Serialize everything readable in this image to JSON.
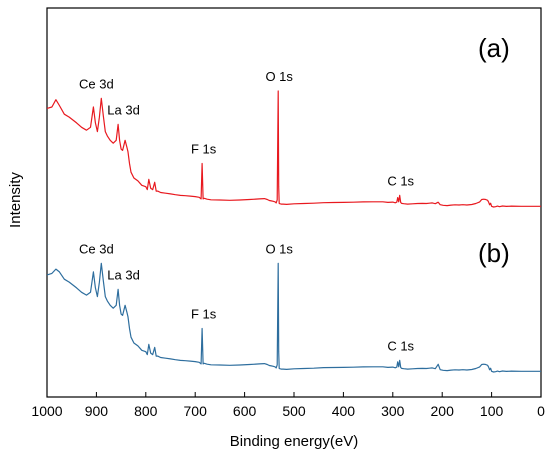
{
  "chart_data": {
    "type": "line",
    "xlabel": "Binding energy(eV)",
    "ylabel": "Intensity",
    "xlim": [
      1000,
      0
    ],
    "x_reversed": true,
    "x_ticks": [
      1000,
      900,
      800,
      700,
      600,
      500,
      400,
      300,
      200,
      100,
      0
    ],
    "grid": false,
    "legend": "none",
    "series": [
      {
        "color": "#e8191f",
        "panel_label": "(a)",
        "x": [
          1000,
          990,
          982,
          975,
          965,
          955,
          940,
          930,
          920,
          912,
          906,
          902,
          898,
          894,
          890,
          886,
          882,
          878,
          872,
          866,
          860,
          856,
          853,
          850,
          847,
          842,
          838,
          836,
          833,
          830,
          824,
          816,
          808,
          800,
          797,
          794,
          790,
          786,
          782,
          779,
          776,
          770,
          760,
          750,
          740,
          730,
          720,
          710,
          700,
          692,
          688,
          686,
          684,
          682,
          680,
          676,
          668,
          650,
          630,
          610,
          590,
          570,
          560,
          554,
          550,
          546,
          542,
          538,
          536,
          534,
          532,
          531,
          530,
          528,
          526,
          522,
          515,
          500,
          480,
          460,
          440,
          420,
          400,
          380,
          360,
          340,
          320,
          310,
          300,
          295,
          292,
          290,
          288,
          286,
          284,
          282,
          278,
          270,
          260,
          250,
          240,
          232,
          226,
          220,
          214,
          208,
          204,
          198,
          190,
          182,
          174,
          166,
          158,
          150,
          140,
          132,
          124,
          120,
          116,
          112,
          108,
          106,
          104,
          102,
          100,
          96,
          92,
          88,
          84,
          78,
          70,
          60,
          40,
          20,
          0
        ],
        "y": [
          68,
          69,
          74,
          70,
          64,
          62,
          58,
          55,
          53,
          55,
          69,
          58,
          52,
          62,
          75,
          63,
          52,
          49,
          46,
          44,
          46,
          57,
          46,
          40,
          39,
          46,
          41,
          38,
          30,
          24,
          20,
          18,
          15,
          14,
          12,
          19,
          13,
          12,
          17,
          11,
          11,
          10,
          9.5,
          9,
          8.5,
          8,
          7.8,
          7.5,
          7.2,
          6.7,
          5.6,
          30,
          5.6,
          6,
          5.8,
          5.4,
          5,
          4.8,
          4.6,
          4.8,
          5.2,
          5.6,
          5.8,
          5.2,
          4.5,
          4.2,
          3.9,
          3.5,
          2.8,
          5,
          80,
          14,
          2.5,
          2.2,
          2,
          2,
          1.8,
          2.2,
          2.4,
          2.6,
          3,
          3.1,
          3.2,
          3.3,
          3.5,
          3.6,
          3.6,
          3.2,
          3.4,
          2.9,
          3.4,
          6.5,
          3.6,
          8,
          3.2,
          2.5,
          2.3,
          2,
          2.2,
          2.4,
          2.5,
          2.4,
          2.6,
          2.8,
          2.3,
          3.3,
          1.6,
          1.2,
          1,
          1.3,
          1.5,
          1.4,
          1.6,
          1.4,
          1.7,
          2.4,
          3.5,
          5.2,
          5.4,
          5.2,
          4.6,
          3.4,
          1.5,
          2.6,
          0.5,
          0,
          0.2,
          0.6,
          0.2,
          0.7,
          0.4,
          0.6,
          0.5,
          0.5,
          0.5
        ]
      },
      {
        "color": "#2e6e9e",
        "panel_label": "(b)",
        "x": [
          1000,
          990,
          982,
          975,
          965,
          955,
          940,
          930,
          920,
          912,
          906,
          902,
          898,
          894,
          890,
          886,
          882,
          878,
          872,
          866,
          860,
          856,
          853,
          850,
          847,
          842,
          838,
          836,
          833,
          830,
          824,
          816,
          808,
          800,
          797,
          794,
          790,
          786,
          782,
          779,
          776,
          770,
          760,
          750,
          740,
          730,
          720,
          710,
          700,
          692,
          688,
          686,
          684,
          682,
          680,
          676,
          668,
          650,
          630,
          610,
          590,
          570,
          560,
          554,
          550,
          546,
          542,
          538,
          536,
          534,
          532,
          531,
          530,
          528,
          526,
          522,
          515,
          500,
          480,
          460,
          440,
          420,
          400,
          380,
          360,
          340,
          320,
          310,
          300,
          295,
          292,
          290,
          288,
          286,
          284,
          282,
          278,
          270,
          260,
          250,
          240,
          232,
          226,
          220,
          214,
          208,
          204,
          198,
          190,
          182,
          174,
          166,
          158,
          150,
          140,
          132,
          124,
          120,
          116,
          112,
          108,
          106,
          104,
          102,
          100,
          96,
          92,
          88,
          84,
          78,
          70,
          60,
          40,
          20,
          0
        ],
        "y": [
          67,
          68,
          71,
          69,
          64,
          62,
          58,
          55,
          53,
          55,
          69,
          58,
          52,
          62,
          75,
          63,
          52,
          49,
          46,
          44,
          46,
          57,
          46,
          40,
          39,
          46,
          41,
          38,
          30,
          24,
          20,
          18,
          15,
          14,
          12,
          19,
          13,
          12,
          17,
          11,
          11,
          10,
          9.5,
          9,
          8.5,
          8,
          7.8,
          7.5,
          7.2,
          6.7,
          5.6,
          30,
          5.6,
          6,
          5.8,
          5.4,
          5,
          4.8,
          4.6,
          4.8,
          5.2,
          5.6,
          5.8,
          5.2,
          4.5,
          4.2,
          3.9,
          3.5,
          2.8,
          5,
          75,
          14,
          2.5,
          2.2,
          2,
          2,
          1.8,
          2.2,
          2.4,
          2.6,
          3,
          3.1,
          3.2,
          3.3,
          3.5,
          3.6,
          3.6,
          3.2,
          3.4,
          2.9,
          3.4,
          7,
          3.6,
          8,
          3.2,
          2.5,
          2.3,
          2,
          2.2,
          2.4,
          2.5,
          2.4,
          2.6,
          2.8,
          2.3,
          5.3,
          1.6,
          1.2,
          1,
          1.3,
          1.5,
          1.4,
          1.6,
          1.4,
          1.7,
          2.4,
          3.5,
          5.2,
          5.4,
          5.2,
          4.6,
          3.4,
          1.5,
          2.6,
          0.5,
          0,
          0.2,
          0.6,
          0.2,
          0.7,
          0.4,
          0.6,
          0.5,
          0.5,
          0.5
        ]
      }
    ],
    "annotations": [
      {
        "series": 0,
        "text": "Ce 3d",
        "x": 900
      },
      {
        "series": 0,
        "text": "La 3d",
        "x": 845
      },
      {
        "series": 0,
        "text": "O 1s",
        "x": 530
      },
      {
        "series": 0,
        "text": "F 1s",
        "x": 683
      },
      {
        "series": 0,
        "text": "C 1s",
        "x": 284
      },
      {
        "series": 1,
        "text": "Ce 3d",
        "x": 900
      },
      {
        "series": 1,
        "text": "La 3d",
        "x": 845
      },
      {
        "series": 1,
        "text": "O 1s",
        "x": 530
      },
      {
        "series": 1,
        "text": "F 1s",
        "x": 683
      },
      {
        "series": 1,
        "text": "C 1s",
        "x": 284
      }
    ]
  }
}
